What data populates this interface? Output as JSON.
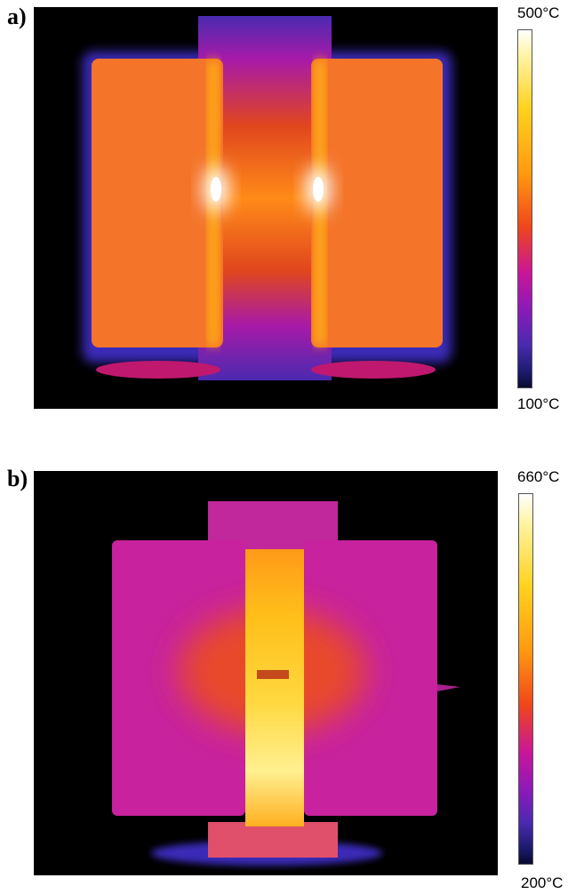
{
  "panels": [
    {
      "label": "a)",
      "scale_max": "500°C",
      "scale_min": "100°C"
    },
    {
      "label": "b)",
      "scale_max": "660°C",
      "scale_min": "200°C"
    }
  ],
  "colormap": [
    "#0a0a30",
    "#1a1a6a",
    "#4a2ab0",
    "#8c1ab8",
    "#c8169a",
    "#f0461a",
    "#ff9a10",
    "#ffd21e",
    "#fff6b0",
    "#ffffff"
  ]
}
